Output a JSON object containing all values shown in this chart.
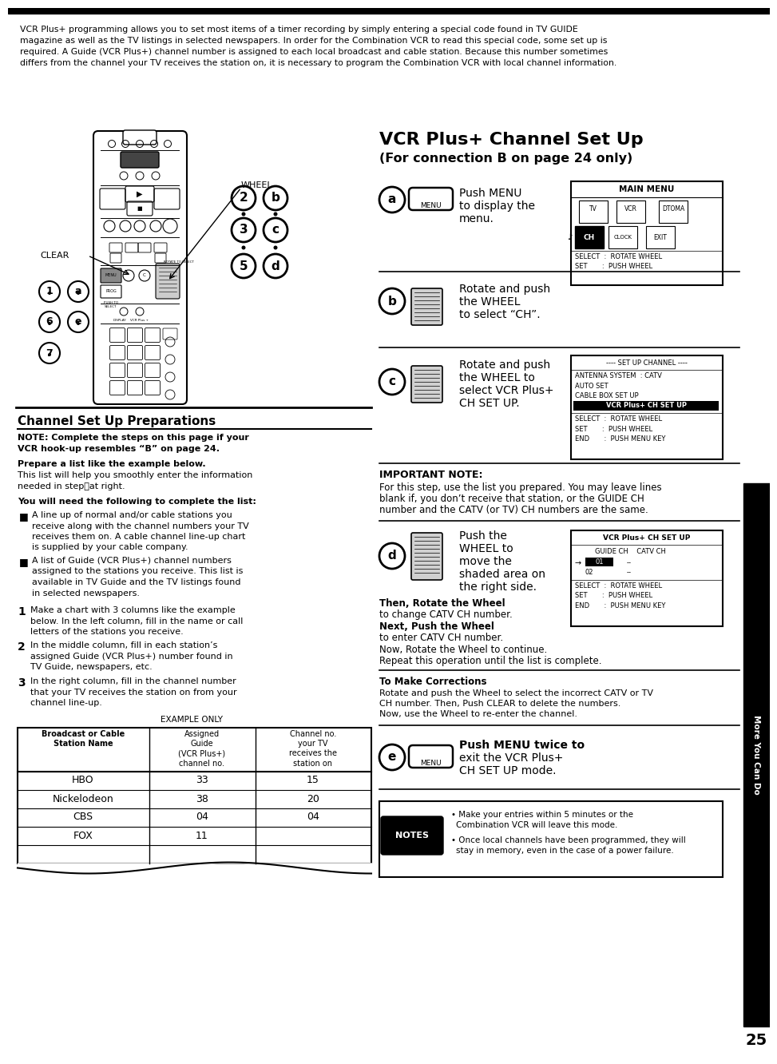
{
  "bg_color": "#ffffff",
  "page_width": 9.54,
  "page_height": 13.12,
  "page_number": "25",
  "side_label": "More You Can Do",
  "intro_text_line1": "VCR Plus+ programming allows you to set most items of a timer recording by simply entering a special code found in TV GUIDE",
  "intro_text_line2": "magazine as well as the TV listings in selected newspapers. In order for the Combination VCR to read this special code, some set up is",
  "intro_text_line3": "required. A Guide (VCR Plus+) channel number is assigned to each local broadcast and cable station. Because this number sometimes",
  "intro_text_line4": "differs from the channel your TV receives the station on, it is necessary to program the Combination VCR with local channel information.",
  "title_right": "VCR Plus+ Channel Set Up",
  "subtitle_right": "(For connection B on page 24 only)",
  "section_left_title": "Channel Set Up Preparations",
  "note_bold_line1": "NOTE: Complete the steps on this page if your",
  "note_bold_line2": "VCR hook-up resembles “B” on page 24.",
  "prepare_bold": "Prepare a list like the example below.",
  "prepare_text_line1": "This list will help you smoothly enter the information",
  "prepare_text_line2": "needed in stepⓐat right.",
  "you_will_need_bold": "You will need the following to complete the list:",
  "bullet1_lines": [
    "A line up of normal and/or cable stations you",
    "receive along with the channel numbers your TV",
    "receives them on. A cable channel line-up chart",
    "is supplied by your cable company."
  ],
  "bullet2_lines": [
    "A list of Guide (VCR Plus+) channel numbers",
    "assigned to the stations you receive. This list is",
    "available in TV Guide and the TV listings found",
    "in selected newspapers."
  ],
  "step1_lines": [
    "Make a chart with 3 columns like the example",
    "below. In the left column, fill in the name or call",
    "letters of the stations you receive."
  ],
  "step2_lines": [
    "In the middle column, fill in each station’s",
    "assigned Guide (VCR Plus+) number found in",
    "TV Guide, newspapers, etc."
  ],
  "step3_lines": [
    "In the right column, fill in the channel number",
    "that your TV receives the station on from your",
    "channel line-up."
  ],
  "example_label": "EXAMPLE ONLY",
  "table_col1_header": "Broadcast or Cable\nStation Name",
  "table_col2_header": "Assigned\nGuide\n(VCR Plus+)\nchannel no.",
  "table_col3_header": "Channel no.\nyour TV\nreceives the\nstation on",
  "table_rows": [
    [
      "HBO",
      "33",
      "15"
    ],
    [
      "Nickelodeon",
      "38",
      "20"
    ],
    [
      "CBS",
      "04",
      "04"
    ],
    [
      "FOX",
      "11",
      ""
    ],
    [
      "",
      "",
      ""
    ]
  ],
  "important_note_title": "IMPORTANT NOTE:",
  "important_note_lines": [
    "For this step, use the list you prepared. You may leave lines",
    "blank if, you don’t receive that station, or the GUIDE CH",
    "number and the CATV (or TV) CH numbers are the same."
  ],
  "step_a_lines": [
    "Push MENU",
    "to display the",
    "menu."
  ],
  "step_b_lines": [
    "Rotate and push",
    "the WHEEL",
    "to select “CH”."
  ],
  "step_c_lines": [
    "Rotate and push",
    "the WHEEL to",
    "select VCR Plus+",
    "CH SET UP."
  ],
  "step_d_lines": [
    "Push the",
    "WHEEL to",
    "move the",
    "shaded area on",
    "the right side."
  ],
  "then_rotate_bold": "Then, Rotate the Wheel",
  "then_rotate_normal": "to change CATV CH number.",
  "next_push_bold": "Next, Push the Wheel",
  "next_push_normal": "to enter CATV CH number.",
  "now_rotate_bold": "Now, Rotate the Wheel to continue.",
  "now_rotate_normal": "Repeat this operation until the list is complete.",
  "to_make_corrections_title": "To Make Corrections",
  "to_make_corrections_lines": [
    "Rotate and push the Wheel to select the incorrect CATV or TV",
    "CH number. Then, Push CLEAR to delete the numbers.",
    "Now, use the Wheel to re-enter the channel."
  ],
  "step_e_lines": [
    "Push MENU twice to",
    "exit the VCR Plus+",
    "CH SET UP mode."
  ],
  "notes_bullet1_lines": [
    "Make your entries within 5 minutes or the",
    "Combination VCR will leave this mode."
  ],
  "notes_bullet2_lines": [
    "Once local channels have been programmed, they will",
    "stay in memory, even in the case of a power failure."
  ]
}
